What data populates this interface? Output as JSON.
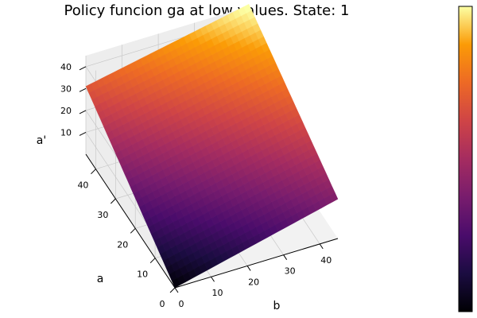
{
  "chart_data": {
    "type": "surface",
    "title": "Policy funcion ga at low values. State: 1",
    "xlabel": "b",
    "ylabel": "a",
    "zlabel": "a'",
    "x_range": [
      0,
      45
    ],
    "y_range": [
      0,
      45
    ],
    "zlim": [
      0,
      45
    ],
    "x_ticks": [
      "0",
      "10",
      "20",
      "30",
      "40"
    ],
    "y_ticks": [
      "0",
      "10",
      "20",
      "30",
      "40"
    ],
    "z_ticks": [
      "10",
      "20",
      "30",
      "40"
    ],
    "colormap": "inferno",
    "colorbar": true,
    "grid": true,
    "z_corners": {
      "b0_a0": 0,
      "b45_a0": 18,
      "b0_a45": 31,
      "b45_a45": 46
    }
  }
}
